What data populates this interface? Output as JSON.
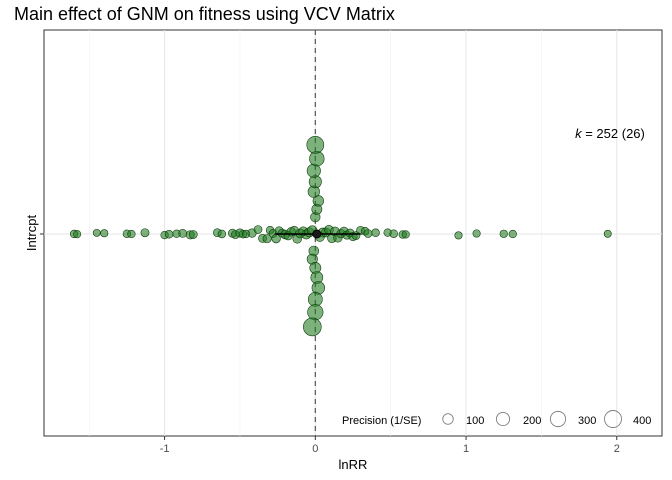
{
  "chart_data": {
    "type": "scatter",
    "title": "Main effect of GNM on fitness using VCV Matrix",
    "xlabel": "lnRR",
    "ylabel": "",
    "categories": [
      "Intrcpt"
    ],
    "xlim": [
      -1.8,
      2.3
    ],
    "xticks": [
      -1,
      0,
      1,
      2
    ],
    "xtick_labels": [
      "-1",
      "0",
      "1",
      "2"
    ],
    "grid": true,
    "reference_line_x": 0,
    "estimate": {
      "x": 0.01,
      "ci": [
        -0.27,
        0.3
      ]
    },
    "annotation": {
      "k_symbol": "k",
      "k_value": "252",
      "k_groups": "26",
      "eq": " = ",
      "open": " (",
      "close": ")"
    },
    "legend": {
      "title": "Precision (1/SE)",
      "placement": "bottom-right",
      "sizes": [
        100,
        200,
        300,
        400
      ],
      "labels": [
        "100",
        "200",
        "300",
        "400"
      ]
    },
    "point_color": "#1f7a1f",
    "point_stroke": "#0f3d0f",
    "spread_points": [
      {
        "x": -1.6,
        "precision": 15
      },
      {
        "x": -1.58,
        "precision": 12
      },
      {
        "x": -1.45,
        "precision": 10
      },
      {
        "x": -1.4,
        "precision": 12
      },
      {
        "x": -1.25,
        "precision": 15
      },
      {
        "x": -1.22,
        "precision": 14
      },
      {
        "x": -1.13,
        "precision": 20
      },
      {
        "x": -1.0,
        "precision": 14
      },
      {
        "x": -0.97,
        "precision": 16
      },
      {
        "x": -0.92,
        "precision": 14
      },
      {
        "x": -0.88,
        "precision": 18
      },
      {
        "x": -0.83,
        "precision": 22
      },
      {
        "x": -0.81,
        "precision": 20
      },
      {
        "x": -0.65,
        "precision": 18
      },
      {
        "x": -0.62,
        "precision": 16
      },
      {
        "x": -0.55,
        "precision": 20
      },
      {
        "x": -0.53,
        "precision": 18
      },
      {
        "x": -0.5,
        "precision": 22
      },
      {
        "x": -0.48,
        "precision": 16
      },
      {
        "x": -0.46,
        "precision": 14
      },
      {
        "x": -0.42,
        "precision": 24
      },
      {
        "x": -0.38,
        "precision": 18
      },
      {
        "x": -0.35,
        "precision": 20
      },
      {
        "x": -0.32,
        "precision": 22
      },
      {
        "x": -0.3,
        "precision": 16
      },
      {
        "x": -0.28,
        "precision": 20
      },
      {
        "x": -0.26,
        "precision": 26
      },
      {
        "x": -0.24,
        "precision": 22
      },
      {
        "x": -0.22,
        "precision": 20
      },
      {
        "x": -0.2,
        "precision": 28
      },
      {
        "x": -0.18,
        "precision": 24
      },
      {
        "x": -0.16,
        "precision": 26
      },
      {
        "x": -0.14,
        "precision": 30
      },
      {
        "x": -0.12,
        "precision": 28
      },
      {
        "x": -0.1,
        "precision": 32
      },
      {
        "x": -0.08,
        "precision": 30
      },
      {
        "x": -0.06,
        "precision": 34
      },
      {
        "x": -0.04,
        "precision": 36
      },
      {
        "x": -0.02,
        "precision": 40
      },
      {
        "x": 0.03,
        "precision": 38
      },
      {
        "x": 0.05,
        "precision": 34
      },
      {
        "x": 0.07,
        "precision": 32
      },
      {
        "x": 0.09,
        "precision": 30
      },
      {
        "x": 0.11,
        "precision": 28
      },
      {
        "x": 0.13,
        "precision": 30
      },
      {
        "x": 0.15,
        "precision": 26
      },
      {
        "x": 0.17,
        "precision": 24
      },
      {
        "x": 0.19,
        "precision": 26
      },
      {
        "x": 0.21,
        "precision": 22
      },
      {
        "x": 0.23,
        "precision": 20
      },
      {
        "x": 0.25,
        "precision": 22
      },
      {
        "x": 0.27,
        "precision": 18
      },
      {
        "x": 0.3,
        "precision": 20
      },
      {
        "x": 0.33,
        "precision": 16
      },
      {
        "x": 0.35,
        "precision": 18
      },
      {
        "x": 0.4,
        "precision": 16
      },
      {
        "x": 0.48,
        "precision": 14
      },
      {
        "x": 0.52,
        "precision": 16
      },
      {
        "x": 0.58,
        "precision": 14
      },
      {
        "x": 0.6,
        "precision": 12
      },
      {
        "x": 0.95,
        "precision": 12
      },
      {
        "x": 1.07,
        "precision": 12
      },
      {
        "x": 1.25,
        "precision": 14
      },
      {
        "x": 1.31,
        "precision": 14
      },
      {
        "x": 1.94,
        "precision": 10
      }
    ],
    "stack_points": [
      {
        "x": 0.0,
        "precision": 40
      },
      {
        "x": -0.01,
        "precision": 45
      },
      {
        "x": 0.01,
        "precision": 50
      },
      {
        "x": -0.02,
        "precision": 55
      },
      {
        "x": 0.02,
        "precision": 60
      },
      {
        "x": 0.0,
        "precision": 70
      },
      {
        "x": -0.01,
        "precision": 80
      },
      {
        "x": 0.01,
        "precision": 90
      },
      {
        "x": 0.0,
        "precision": 100
      },
      {
        "x": 0.02,
        "precision": 110
      },
      {
        "x": -0.01,
        "precision": 130
      },
      {
        "x": 0.0,
        "precision": 150
      },
      {
        "x": 0.01,
        "precision": 170
      },
      {
        "x": 0.0,
        "precision": 200
      },
      {
        "x": 0.0,
        "precision": 260
      },
      {
        "x": -0.02,
        "precision": 300
      }
    ]
  }
}
